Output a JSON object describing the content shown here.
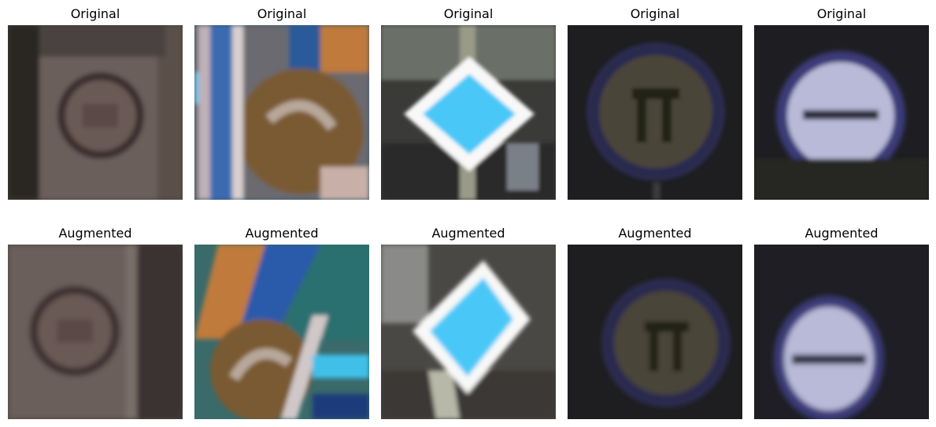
{
  "panels": [
    {
      "row": "top",
      "col": 1,
      "title": "Original",
      "sign": "dark-circle-on-post"
    },
    {
      "row": "top",
      "col": 2,
      "title": "Original",
      "sign": "brown-circle-behind-blue-post"
    },
    {
      "row": "top",
      "col": 3,
      "title": "Original",
      "sign": "priority-road-diamond"
    },
    {
      "row": "top",
      "col": 4,
      "title": "Original",
      "sign": "no-trucks-circle"
    },
    {
      "row": "top",
      "col": 5,
      "title": "Original",
      "sign": "no-entry-circle"
    },
    {
      "row": "bottom",
      "col": 1,
      "title": "Augmented",
      "sign": "dark-circle-on-post"
    },
    {
      "row": "bottom",
      "col": 2,
      "title": "Augmented",
      "sign": "brown-circle-behind-blue-post"
    },
    {
      "row": "bottom",
      "col": 3,
      "title": "Augmented",
      "sign": "priority-road-diamond"
    },
    {
      "row": "bottom",
      "col": 4,
      "title": "Augmented",
      "sign": "no-trucks-circle"
    },
    {
      "row": "bottom",
      "col": 5,
      "title": "Augmented",
      "sign": "no-entry-circle"
    }
  ]
}
